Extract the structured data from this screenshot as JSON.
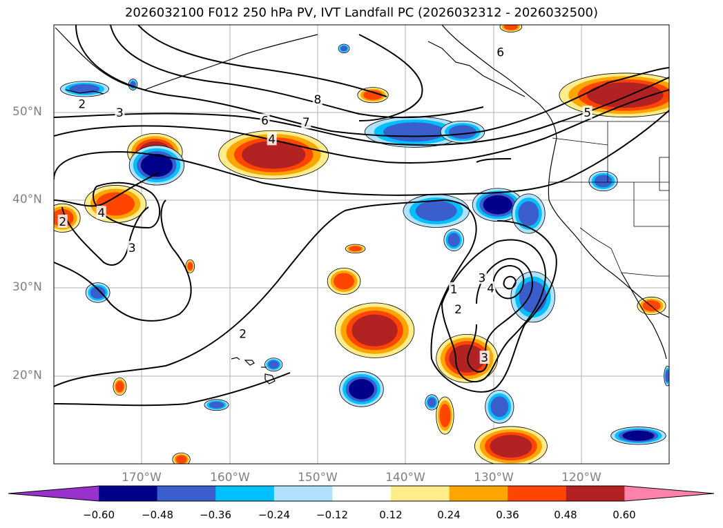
{
  "title": "2026032100 F012 250 hPa PV, IVT Landfall PC (2026032312 - 2026032500)",
  "map": {
    "projection": "PlateCarree",
    "lon_range": [
      -180,
      -110
    ],
    "lat_range": [
      10,
      60
    ],
    "lat_ticks": [
      {
        "value": 50,
        "label": "50°N"
      },
      {
        "value": 40,
        "label": "40°N"
      },
      {
        "value": 30,
        "label": "30°N"
      },
      {
        "value": 20,
        "label": "20°N"
      }
    ],
    "lon_ticks": [
      {
        "value": -170,
        "label": "170°W"
      },
      {
        "value": -160,
        "label": "160°W"
      },
      {
        "value": -150,
        "label": "150°W"
      },
      {
        "value": -140,
        "label": "140°W"
      },
      {
        "value": -130,
        "label": "130°W"
      },
      {
        "value": -120,
        "label": "120°W"
      }
    ],
    "contour_labels": [
      {
        "text": "2",
        "lon": -176.8,
        "lat": 51.0
      },
      {
        "text": "3",
        "lon": -172.5,
        "lat": 50.0
      },
      {
        "text": "4",
        "lon": -155.2,
        "lat": 47.0
      },
      {
        "text": "6",
        "lon": -156.0,
        "lat": 49.1
      },
      {
        "text": "7",
        "lon": -151.3,
        "lat": 48.9
      },
      {
        "text": "8",
        "lon": -150.0,
        "lat": 51.5
      },
      {
        "text": "6",
        "lon": -129.2,
        "lat": 56.9
      },
      {
        "text": "5",
        "lon": -119.3,
        "lat": 50.0
      },
      {
        "text": "4",
        "lon": -174.6,
        "lat": 38.6
      },
      {
        "text": "2",
        "lon": -179.0,
        "lat": 37.6
      },
      {
        "text": "3",
        "lon": -171.1,
        "lat": 34.6
      },
      {
        "text": "2",
        "lon": -158.5,
        "lat": 24.8
      },
      {
        "text": "1",
        "lon": -134.5,
        "lat": 29.9
      },
      {
        "text": "2",
        "lon": -134.0,
        "lat": 27.6
      },
      {
        "text": "3",
        "lon": -131.3,
        "lat": 31.2
      },
      {
        "text": "4",
        "lon": -130.3,
        "lat": 30.0
      },
      {
        "text": "3",
        "lon": -131.0,
        "lat": 22.1
      }
    ]
  },
  "colorbar": {
    "colors": [
      "#9932cc",
      "#00008b",
      "#3a5fcd",
      "#00bfff",
      "#b0e2ff",
      "#ffffff",
      "#ffec8b",
      "#ffa500",
      "#ff4500",
      "#b22222",
      "#ff82ab"
    ],
    "ticks": [
      "−0.60",
      "−0.48",
      "−0.36",
      "−0.24",
      "−0.12",
      "0.12",
      "0.24",
      "0.36",
      "0.48",
      "0.60"
    ]
  },
  "features": [
    {
      "kind": "pos",
      "level": 2,
      "lon": -168.5,
      "lat": 45.5,
      "rx": 2.5,
      "ry": 1.7
    },
    {
      "kind": "pos",
      "level": 2,
      "lon": -155.0,
      "lat": 45.2,
      "rx": 5.0,
      "ry": 2.2
    },
    {
      "kind": "pos",
      "level": 1,
      "lon": -173.0,
      "lat": 39.6,
      "rx": 2.8,
      "ry": 1.7
    },
    {
      "kind": "pos",
      "level": 1,
      "lon": -179.0,
      "lat": 38.0,
      "rx": 1.6,
      "ry": 1.3
    },
    {
      "kind": "pos",
      "level": 2,
      "lon": -143.5,
      "lat": 25.2,
      "rx": 3.6,
      "ry": 2.5
    },
    {
      "kind": "pos",
      "level": 1,
      "lon": -147.0,
      "lat": 30.8,
      "rx": 1.5,
      "ry": 1.2
    },
    {
      "kind": "pos",
      "level": 2,
      "lon": -133.0,
      "lat": 22.0,
      "rx": 2.8,
      "ry": 2.2
    },
    {
      "kind": "pos",
      "level": 2,
      "lon": -128.0,
      "lat": 12.0,
      "rx": 3.3,
      "ry": 1.8
    },
    {
      "kind": "pos",
      "level": 1,
      "lon": -135.5,
      "lat": 15.5,
      "rx": 0.8,
      "ry": 1.7
    },
    {
      "kind": "pos",
      "level": 1,
      "lon": -143.7,
      "lat": 52.0,
      "rx": 1.4,
      "ry": 0.7
    },
    {
      "kind": "pos",
      "level": 1,
      "lon": -128.0,
      "lat": 59.8,
      "rx": 1.0,
      "ry": 0.5
    },
    {
      "kind": "pos",
      "level": 1,
      "lon": -145.7,
      "lat": 34.5,
      "rx": 0.9,
      "ry": 0.4
    },
    {
      "kind": "pos",
      "level": 1,
      "lon": -172.5,
      "lat": 18.8,
      "rx": 0.6,
      "ry": 0.8
    },
    {
      "kind": "pos",
      "level": 1,
      "lon": -165.5,
      "lat": 10.5,
      "rx": 0.8,
      "ry": 0.6
    },
    {
      "kind": "pos",
      "level": 1,
      "lon": -112.0,
      "lat": 28.0,
      "rx": 1.3,
      "ry": 0.8
    },
    {
      "kind": "pos",
      "level": 1,
      "lon": -164.5,
      "lat": 32.5,
      "rx": 0.4,
      "ry": 0.6
    },
    {
      "kind": "pos",
      "level": 2,
      "lon": -115.0,
      "lat": 52.0,
      "rx": 6.0,
      "ry": 2.0
    },
    {
      "kind": "neg",
      "level": 2,
      "lon": -168.3,
      "lat": 44.0,
      "rx": 2.5,
      "ry": 1.8
    },
    {
      "kind": "neg",
      "level": 1,
      "lon": -139.0,
      "lat": 47.8,
      "rx": 4.5,
      "ry": 1.4
    },
    {
      "kind": "neg",
      "level": 1,
      "lon": -133.5,
      "lat": 47.8,
      "rx": 2.0,
      "ry": 1.0
    },
    {
      "kind": "neg",
      "level": 1,
      "lon": -136.5,
      "lat": 38.8,
      "rx": 3.0,
      "ry": 1.5
    },
    {
      "kind": "neg",
      "level": 2,
      "lon": -129.5,
      "lat": 39.5,
      "rx": 2.3,
      "ry": 1.5
    },
    {
      "kind": "neg",
      "level": 1,
      "lon": -126.0,
      "lat": 38.5,
      "rx": 1.5,
      "ry": 1.8
    },
    {
      "kind": "neg",
      "level": 1,
      "lon": -125.5,
      "lat": 29.0,
      "rx": 2.0,
      "ry": 2.3
    },
    {
      "kind": "neg",
      "level": 2,
      "lon": -145.0,
      "lat": 18.5,
      "rx": 2.0,
      "ry": 1.6
    },
    {
      "kind": "neg",
      "level": 1,
      "lon": -129.3,
      "lat": 16.5,
      "rx": 1.3,
      "ry": 1.5
    },
    {
      "kind": "neg",
      "level": 2,
      "lon": -113.5,
      "lat": 13.2,
      "rx": 2.5,
      "ry": 0.8
    },
    {
      "kind": "neg",
      "level": 1,
      "lon": -176.5,
      "lat": 52.7,
      "rx": 2.2,
      "ry": 0.7
    },
    {
      "kind": "neg",
      "level": 1,
      "lon": -175.0,
      "lat": 29.5,
      "rx": 1.1,
      "ry": 0.9
    },
    {
      "kind": "neg",
      "level": 1,
      "lon": -117.5,
      "lat": 42.2,
      "rx": 1.3,
      "ry": 0.9
    },
    {
      "kind": "neg",
      "level": 1,
      "lon": -134.5,
      "lat": 35.5,
      "rx": 0.9,
      "ry": 1.0
    },
    {
      "kind": "neg",
      "level": 1,
      "lon": -137.0,
      "lat": 17.0,
      "rx": 0.6,
      "ry": 0.7
    },
    {
      "kind": "neg",
      "level": 1,
      "lon": -161.5,
      "lat": 16.7,
      "rx": 1.1,
      "ry": 0.5
    },
    {
      "kind": "neg",
      "level": 1,
      "lon": -155.0,
      "lat": 21.3,
      "rx": 0.8,
      "ry": 0.6
    },
    {
      "kind": "neg",
      "level": 1,
      "lon": -147.0,
      "lat": 57.3,
      "rx": 0.5,
      "ry": 0.4
    },
    {
      "kind": "neg",
      "level": 1,
      "lon": -171.0,
      "lat": 53.2,
      "rx": 0.4,
      "ry": 0.5
    },
    {
      "kind": "neg",
      "level": 1,
      "lon": -110.2,
      "lat": 20.0,
      "rx": 0.3,
      "ry": 0.9
    }
  ]
}
